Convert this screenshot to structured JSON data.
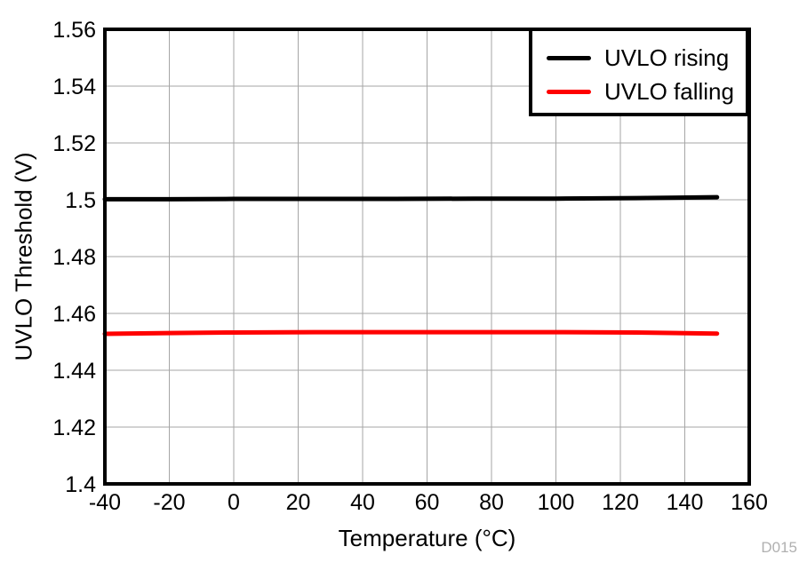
{
  "chart_data": {
    "type": "line",
    "title": "",
    "xlabel": "Temperature (°C)",
    "ylabel": "UVLO Threshold (V)",
    "watermark": "D015",
    "xlim": [
      -40,
      160
    ],
    "ylim": [
      1.4,
      1.56
    ],
    "xticks": [
      -40,
      -20,
      0,
      20,
      40,
      60,
      80,
      100,
      120,
      140,
      160
    ],
    "yticks": [
      1.4,
      1.42,
      1.44,
      1.46,
      1.48,
      1.5,
      1.52,
      1.54,
      1.56
    ],
    "grid": true,
    "legend_position": "top-right",
    "x": [
      -40,
      -20,
      0,
      25,
      50,
      75,
      100,
      125,
      150
    ],
    "series": [
      {
        "name": "UVLO rising",
        "color": "#000000",
        "values": [
          1.5002,
          1.5002,
          1.5003,
          1.5003,
          1.5003,
          1.5004,
          1.5004,
          1.5006,
          1.5009
        ]
      },
      {
        "name": "UVLO falling",
        "color": "#ff0000",
        "values": [
          1.4528,
          1.4531,
          1.4533,
          1.4534,
          1.4534,
          1.4534,
          1.4534,
          1.4533,
          1.4529
        ]
      }
    ],
    "colors": {
      "grid": "#a6a6a6",
      "frame": "#000000",
      "watermark": "#b0b0b0"
    }
  }
}
